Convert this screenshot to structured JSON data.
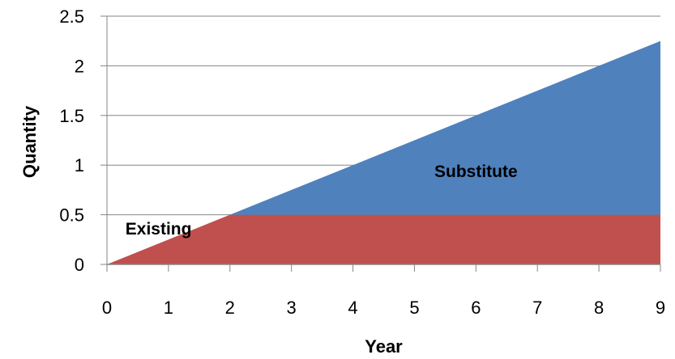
{
  "chart_data": {
    "type": "area",
    "title": "",
    "xlabel": "Year",
    "ylabel": "Quantity",
    "x": [
      0,
      1,
      2,
      3,
      4,
      5,
      6,
      7,
      8,
      9
    ],
    "xlim": [
      0,
      9
    ],
    "ylim": [
      0,
      2.5
    ],
    "x_ticks": [
      "0",
      "1",
      "2",
      "3",
      "4",
      "5",
      "6",
      "7",
      "8",
      "9"
    ],
    "y_ticks": [
      "0",
      "0.5",
      "1",
      "1.5",
      "2",
      "2.5"
    ],
    "stacked": true,
    "grid": true,
    "series": [
      {
        "name": "Existing",
        "color": "#C0504D",
        "values": [
          0,
          0.25,
          0.5,
          0.5,
          0.5,
          0.5,
          0.5,
          0.5,
          0.5,
          0.5
        ]
      },
      {
        "name": "Substitute",
        "color": "#4F81BD",
        "values": [
          0,
          0,
          0,
          0.25,
          0.5,
          0.75,
          1.0,
          1.25,
          1.5,
          1.75
        ]
      }
    ]
  }
}
